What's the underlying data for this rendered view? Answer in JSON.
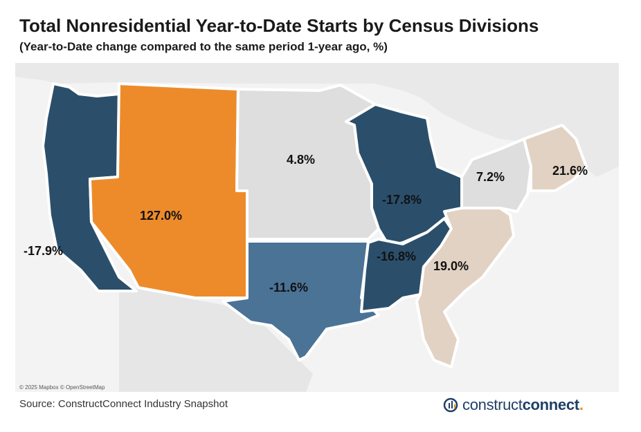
{
  "title": "Total Nonresidential Year-to-Date Starts by Census Divisions",
  "subtitle": "(Year-to-Date change compared to the same period 1-year ago, %)",
  "attribution": "© 2025 Mapbox © OpenStreetMap",
  "source": "Source: ConstructConnect Industry Snapshot",
  "logo": {
    "part1": "construct",
    "part2": "connect",
    "dot": "."
  },
  "colors": {
    "dark_blue": "#2b4f6b",
    "mid_blue": "#4a7396",
    "orange": "#ed8b2b",
    "light_gray": "#dedede",
    "tan": "#e2d2c3"
  },
  "regions": [
    {
      "name": "Pacific",
      "label": "-17.9%",
      "value": -17.9,
      "color": "dark_blue"
    },
    {
      "name": "Mountain",
      "label": "127.0%",
      "value": 127.0,
      "color": "orange"
    },
    {
      "name": "West North Central",
      "label": "4.8%",
      "value": 4.8,
      "color": "light_gray"
    },
    {
      "name": "West South Central",
      "label": "-11.6%",
      "value": -11.6,
      "color": "mid_blue"
    },
    {
      "name": "East North Central",
      "label": "-17.8%",
      "value": -17.8,
      "color": "dark_blue"
    },
    {
      "name": "East South Central",
      "label": "-16.8%",
      "value": -16.8,
      "color": "dark_blue"
    },
    {
      "name": "South Atlantic",
      "label": "19.0%",
      "value": 19.0,
      "color": "tan"
    },
    {
      "name": "Middle Atlantic",
      "label": "7.2%",
      "value": 7.2,
      "color": "light_gray"
    },
    {
      "name": "New England",
      "label": "21.6%",
      "value": 21.6,
      "color": "tan"
    }
  ]
}
